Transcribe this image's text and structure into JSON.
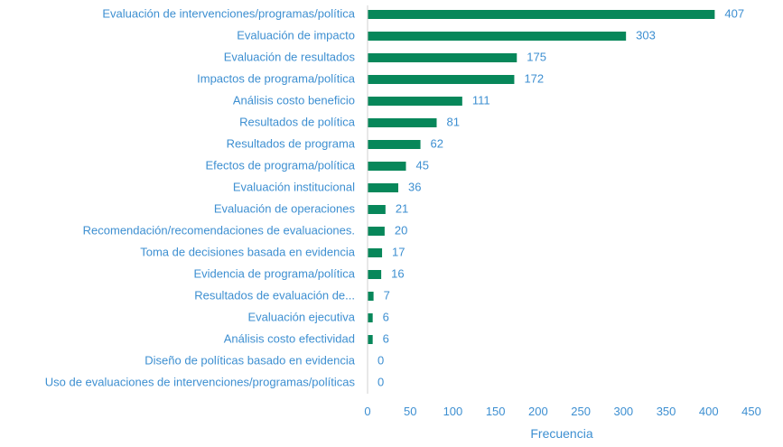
{
  "chart_data": {
    "type": "bar",
    "orientation": "horizontal",
    "categories": [
      "Evaluación de intervenciones/programas/política",
      "Evaluación de impacto",
      "Evaluación de resultados",
      "Impactos de programa/política",
      "Análisis costo beneficio",
      "Resultados de política",
      "Resultados de programa",
      "Efectos de programa/política",
      "Evaluación institucional",
      "Evaluación de operaciones",
      "Recomendación/recomendaciones de evaluaciones.",
      "Toma de decisiones basada en evidencia",
      "Evidencia de programa/política",
      "Resultados de evaluación de...",
      "Evaluación ejecutiva",
      "Análisis costo efectividad",
      "Diseño de políticas basado en evidencia",
      "Uso de evaluaciones de intervenciones/programas/políticas"
    ],
    "values": [
      407,
      303,
      175,
      172,
      111,
      81,
      62,
      45,
      36,
      21,
      20,
      17,
      16,
      7,
      6,
      6,
      0,
      0
    ],
    "xlabel": "Frecuencia",
    "ylabel": "",
    "xlim": [
      0,
      450
    ],
    "xticks": [
      0,
      50,
      100,
      150,
      200,
      250,
      300,
      350,
      400,
      450
    ],
    "data_labels": true,
    "grid": false,
    "legend": "none",
    "colors": {
      "bar": "#07875a",
      "text": "#3d8fd1",
      "axis": "#d0d0d0"
    }
  }
}
